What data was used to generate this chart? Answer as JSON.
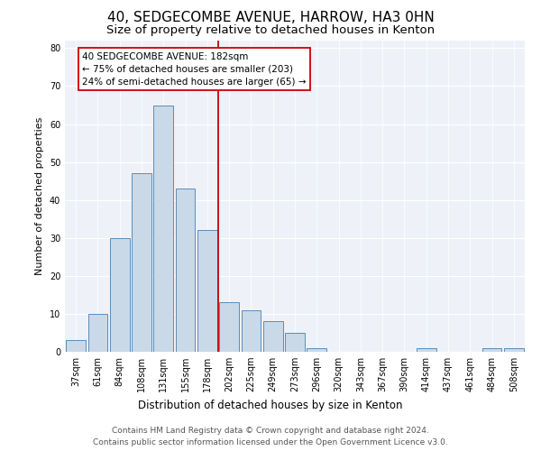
{
  "title": "40, SEDGECOMBE AVENUE, HARROW, HA3 0HN",
  "subtitle": "Size of property relative to detached houses in Kenton",
  "xlabel": "Distribution of detached houses by size in Kenton",
  "ylabel": "Number of detached properties",
  "bar_labels": [
    "37sqm",
    "61sqm",
    "84sqm",
    "108sqm",
    "131sqm",
    "155sqm",
    "178sqm",
    "202sqm",
    "225sqm",
    "249sqm",
    "273sqm",
    "296sqm",
    "320sqm",
    "343sqm",
    "367sqm",
    "390sqm",
    "414sqm",
    "437sqm",
    "461sqm",
    "484sqm",
    "508sqm"
  ],
  "bar_values": [
    3,
    10,
    30,
    47,
    65,
    43,
    32,
    13,
    11,
    8,
    5,
    1,
    0,
    0,
    0,
    0,
    1,
    0,
    0,
    1,
    1
  ],
  "bar_color": "#c9d9e8",
  "bar_edge_color": "#5b8db8",
  "vline_x_idx": 6.5,
  "vline_color": "#cc0000",
  "annotation_text": "40 SEDGECOMBE AVENUE: 182sqm\n← 75% of detached houses are smaller (203)\n24% of semi-detached houses are larger (65) →",
  "annotation_box_color": "#ffffff",
  "annotation_box_edge_color": "#cc0000",
  "ylim": [
    0,
    82
  ],
  "yticks": [
    0,
    10,
    20,
    30,
    40,
    50,
    60,
    70,
    80
  ],
  "footer_line1": "Contains HM Land Registry data © Crown copyright and database right 2024.",
  "footer_line2": "Contains public sector information licensed under the Open Government Licence v3.0.",
  "bg_color": "#eef2f8",
  "title_fontsize": 11,
  "subtitle_fontsize": 9.5,
  "xlabel_fontsize": 8.5,
  "ylabel_fontsize": 8,
  "tick_fontsize": 7,
  "footer_fontsize": 6.5
}
